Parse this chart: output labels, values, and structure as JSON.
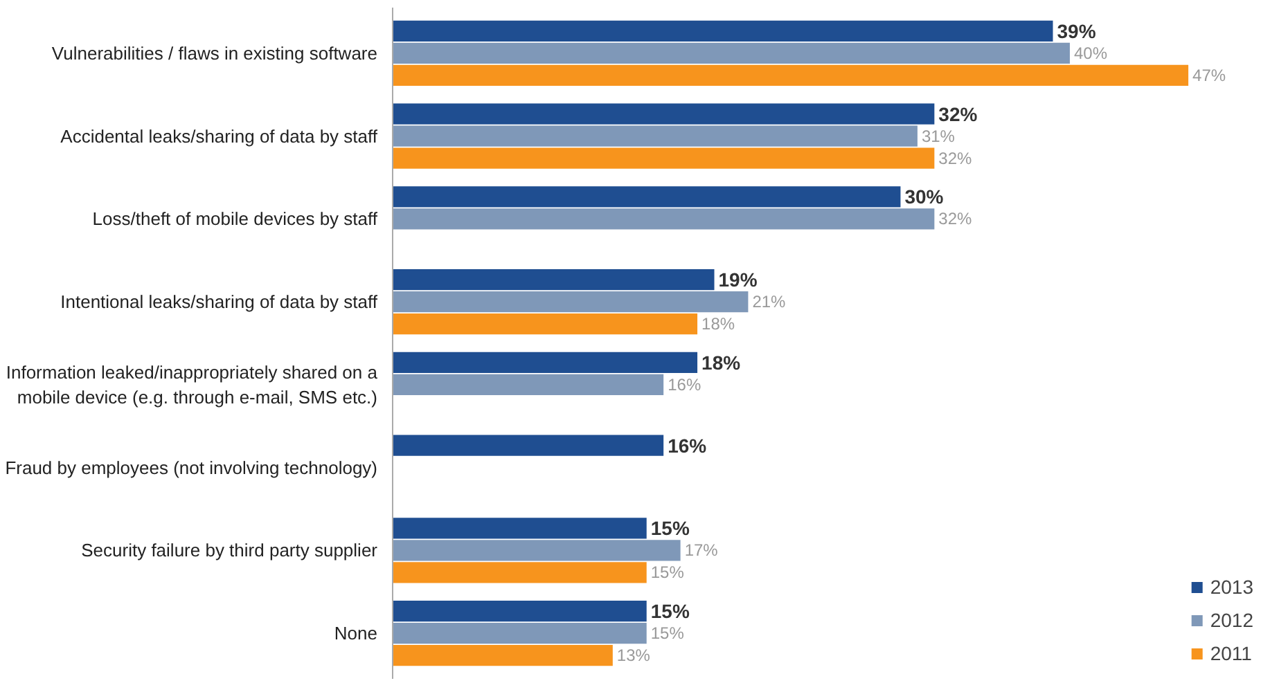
{
  "chart_data": {
    "type": "bar",
    "orientation": "horizontal",
    "categories": [
      "Vulnerabilities / flaws in existing software",
      "Accidental leaks/sharing of data by staff",
      "Loss/theft of mobile devices by staff",
      "Intentional leaks/sharing of data by staff",
      "Information leaked/inappropriately shared on a\nmobile device (e.g. through e-mail, SMS etc.)",
      "Fraud by employees (not involving technology)",
      "Security failure by third party supplier",
      "None"
    ],
    "series": [
      {
        "name": "2013",
        "color": "#1f4e91",
        "values": [
          39,
          32,
          30,
          19,
          18,
          16,
          15,
          15
        ],
        "value_labels": [
          "39%",
          "32%",
          "30%",
          "19%",
          "18%",
          "16%",
          "15%",
          "15%"
        ]
      },
      {
        "name": "2012",
        "color": "#7f98b8",
        "values": [
          40,
          31,
          32,
          21,
          16,
          null,
          17,
          15
        ],
        "value_labels": [
          "40%",
          "31%",
          "32%",
          "21%",
          "16%",
          null,
          "17%",
          "15%"
        ]
      },
      {
        "name": "2011",
        "color": "#f7941d",
        "values": [
          47,
          32,
          null,
          18,
          null,
          null,
          15,
          13
        ],
        "value_labels": [
          "47%",
          "32%",
          null,
          "18%",
          null,
          null,
          "15%",
          "13%"
        ]
      }
    ],
    "legend": "bottom right",
    "grid": false
  }
}
